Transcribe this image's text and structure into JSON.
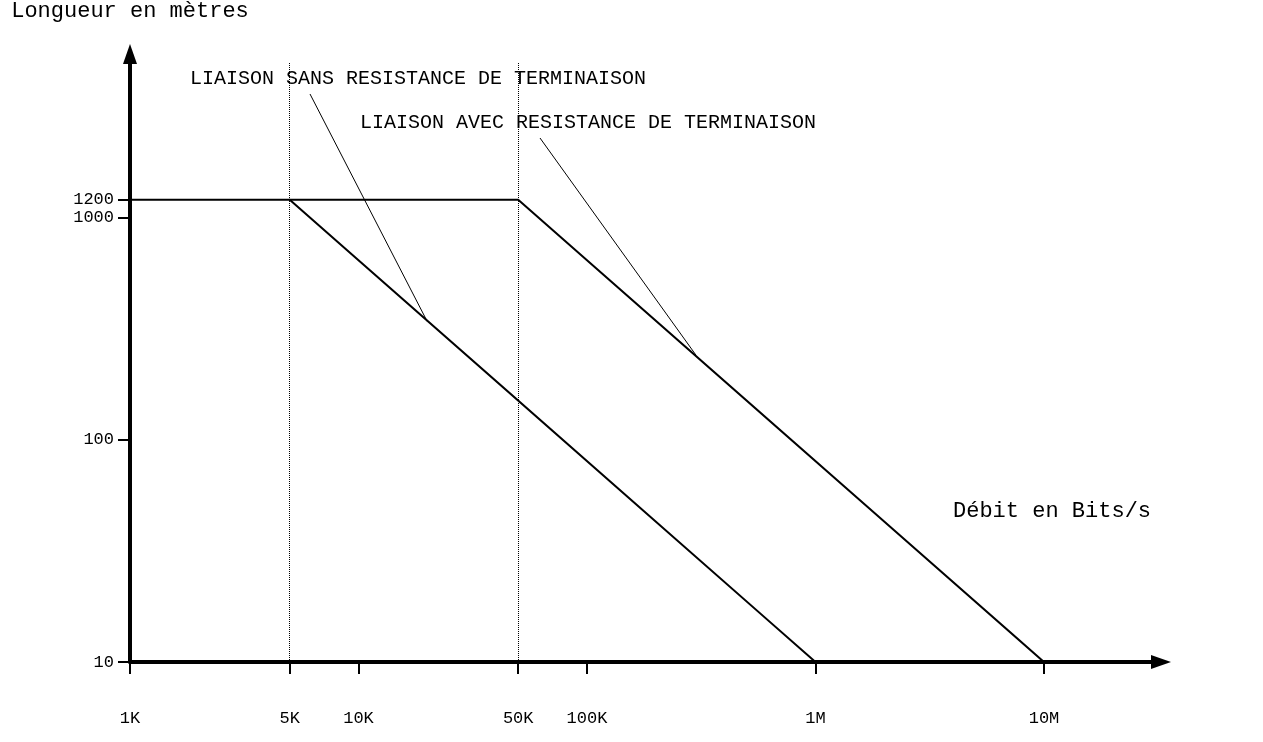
{
  "chart_data": {
    "type": "line",
    "xlabel": "Débit en Bits/s",
    "ylabel": "Longueur en mètres",
    "annotations": [
      {
        "text": "LIAISON SANS RESISTANCE DE TERMINAISON",
        "x": 20000,
        "y": 340
      },
      {
        "text": "LIAISON AVEC RESISTANCE DE TERMINAISON",
        "x": 300000,
        "y": 240
      }
    ],
    "series": [
      {
        "color": "#000000",
        "x": [
          5000,
          1000000
        ],
        "values": [
          1200,
          10
        ]
      },
      {
        "color": "#000000",
        "x": [
          1000,
          50000,
          10000000
        ],
        "values": [
          1200,
          1200,
          10
        ]
      }
    ],
    "ref_lines": [
      {
        "axis": "x",
        "value": 5000,
        "color": "#000000",
        "line_style": "dotted"
      },
      {
        "axis": "x",
        "value": 50000,
        "color": "#000000",
        "line_style": "dotted"
      }
    ],
    "log": "xy",
    "xlim": [
      1000,
      30000000
    ],
    "ylim": [
      10,
      5000
    ],
    "xticks": [
      {
        "value": 1000,
        "label": "1K"
      },
      {
        "value": 5000,
        "label": "5K"
      },
      {
        "value": 10000,
        "label": "10K"
      },
      {
        "value": 50000,
        "label": "50K"
      },
      {
        "value": 100000,
        "label": "100K"
      },
      {
        "value": 1000000,
        "label": "1M"
      },
      {
        "value": 10000000,
        "label": "10M"
      }
    ],
    "yticks": [
      10,
      100,
      1000,
      1200
    ],
    "grid": false,
    "marker": "none",
    "line_style": "solid"
  }
}
